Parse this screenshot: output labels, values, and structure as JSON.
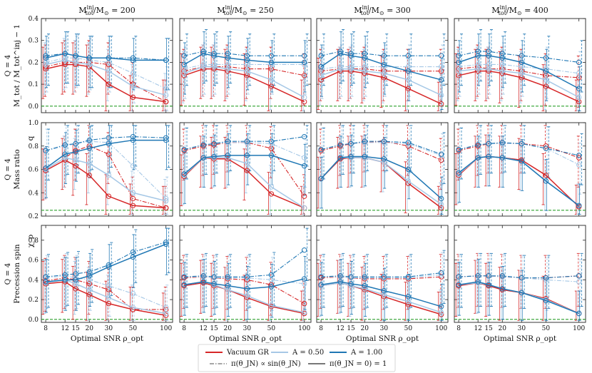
{
  "chart_data": {
    "type": "line",
    "x_ticks": [
      8,
      12,
      15,
      20,
      30,
      50,
      100
    ],
    "x_scale": "log",
    "xlim": [
      7.3,
      115
    ],
    "xlabel": "Optimal SNR ρ_opt",
    "column_titles": [
      "M_tot^inj/M_⊙ = 200",
      "M_tot^inj/M_⊙ = 250",
      "M_tot^inj/M_⊙ = 300",
      "M_tot^inj/M_⊙ = 400"
    ],
    "colors": {
      "vacuum": "#d62728",
      "a050": "#a6c8e6",
      "a100": "#1f77b4",
      "truth": "#2ca02c"
    },
    "legend": {
      "series": [
        "Vacuum GR",
        "A = 0.50",
        "A = 1.00"
      ],
      "priors": [
        "π(θ_JN) ∝ sin(θ_JN)",
        "π(θ_JN = 0) = 1"
      ]
    },
    "rows": [
      {
        "name": "mass",
        "ylabel_top": "Q = 4",
        "ylabel_bottom": "M_tot / M_tot^inj − 1",
        "ylim": [
          -0.03,
          0.4
        ],
        "yticks": [
          0.0,
          0.1,
          0.2,
          0.3,
          0.4
        ],
        "truth": 0.0,
        "panels": [
          {
            "vac_s": [
              0.17,
              0.19,
              0.19,
              0.18,
              0.1,
              0.04,
              0.02
            ],
            "vac_d": [
              0.18,
              0.2,
              0.2,
              0.2,
              0.19,
              0.1,
              0.02
            ],
            "a05_s": [
              0.19,
              0.21,
              0.2,
              0.19,
              0.16,
              0.09,
              0.05
            ],
            "a05_d": [
              0.2,
              0.22,
              0.22,
              0.21,
              0.2,
              0.15,
              0.08
            ],
            "a10_s": [
              0.22,
              0.24,
              0.23,
              0.22,
              0.22,
              0.21,
              0.21
            ],
            "a10_d": [
              0.23,
              0.24,
              0.23,
              0.22,
              0.22,
              0.22,
              0.21
            ]
          },
          {
            "vac_s": [
              0.14,
              0.17,
              0.17,
              0.16,
              0.14,
              0.09,
              0.02
            ],
            "vac_d": [
              0.16,
              0.18,
              0.18,
              0.18,
              0.17,
              0.17,
              0.14
            ],
            "a05_s": [
              0.15,
              0.18,
              0.18,
              0.17,
              0.16,
              0.12,
              0.04
            ],
            "a05_d": [
              0.17,
              0.19,
              0.19,
              0.19,
              0.19,
              0.19,
              0.19
            ],
            "a10_s": [
              0.19,
              0.24,
              0.23,
              0.22,
              0.21,
              0.2,
              0.2
            ],
            "a10_d": [
              0.23,
              0.25,
              0.24,
              0.24,
              0.23,
              0.23,
              0.23
            ]
          },
          {
            "vac_s": [
              0.12,
              0.16,
              0.16,
              0.15,
              0.13,
              0.08,
              0.01
            ],
            "vac_d": [
              0.16,
              0.17,
              0.17,
              0.17,
              0.16,
              0.16,
              0.16
            ],
            "a05_s": [
              0.14,
              0.17,
              0.17,
              0.16,
              0.15,
              0.12,
              0.05
            ],
            "a05_d": [
              0.17,
              0.18,
              0.18,
              0.18,
              0.18,
              0.18,
              0.18
            ],
            "a10_s": [
              0.18,
              0.24,
              0.23,
              0.22,
              0.19,
              0.16,
              0.12
            ],
            "a10_d": [
              0.23,
              0.25,
              0.24,
              0.24,
              0.23,
              0.23,
              0.23
            ]
          },
          {
            "vac_s": [
              0.14,
              0.16,
              0.16,
              0.15,
              0.13,
              0.09,
              0.02
            ],
            "vac_d": [
              0.17,
              0.18,
              0.17,
              0.17,
              0.16,
              0.14,
              0.13
            ],
            "a05_s": [
              0.16,
              0.17,
              0.17,
              0.16,
              0.15,
              0.12,
              0.04
            ],
            "a05_d": [
              0.18,
              0.19,
              0.19,
              0.19,
              0.18,
              0.17,
              0.15
            ],
            "a10_s": [
              0.2,
              0.23,
              0.23,
              0.22,
              0.2,
              0.16,
              0.08
            ],
            "a10_d": [
              0.23,
              0.25,
              0.25,
              0.24,
              0.23,
              0.22,
              0.2
            ]
          }
        ]
      },
      {
        "name": "massratio",
        "ylabel_top": "Q = 4",
        "ylabel_bottom": "Mass ratio",
        "ylabel_side": "q",
        "ylim": [
          0.2,
          1.0
        ],
        "yticks": [
          0.2,
          0.4,
          0.6,
          0.8,
          1.0
        ],
        "truth": 0.25,
        "panels": [
          {
            "vac_s": [
              0.59,
              0.68,
              0.63,
              0.55,
              0.37,
              0.29,
              0.27
            ],
            "vac_d": [
              0.6,
              0.7,
              0.76,
              0.8,
              0.73,
              0.35,
              0.27
            ],
            "a05_s": [
              0.6,
              0.7,
              0.68,
              0.65,
              0.55,
              0.4,
              0.33
            ],
            "a05_d": [
              0.76,
              0.8,
              0.82,
              0.84,
              0.83,
              0.63,
              0.35
            ],
            "a10_s": [
              0.61,
              0.73,
              0.75,
              0.78,
              0.82,
              0.85,
              0.85
            ],
            "a10_d": [
              0.76,
              0.81,
              0.82,
              0.85,
              0.87,
              0.88,
              0.87
            ]
          },
          {
            "vac_s": [
              0.54,
              0.7,
              0.69,
              0.69,
              0.59,
              0.39,
              0.27
            ],
            "vac_d": [
              0.76,
              0.8,
              0.81,
              0.83,
              0.83,
              0.78,
              0.37
            ],
            "a05_s": [
              0.55,
              0.7,
              0.7,
              0.7,
              0.65,
              0.45,
              0.27
            ],
            "a05_d": [
              0.77,
              0.81,
              0.82,
              0.83,
              0.83,
              0.82,
              0.7
            ],
            "a10_s": [
              0.56,
              0.7,
              0.71,
              0.72,
              0.72,
              0.72,
              0.63
            ],
            "a10_d": [
              0.77,
              0.81,
              0.82,
              0.84,
              0.84,
              0.84,
              0.88
            ]
          },
          {
            "vac_s": [
              0.52,
              0.69,
              0.7,
              0.7,
              0.66,
              0.48,
              0.27
            ],
            "vac_d": [
              0.76,
              0.8,
              0.82,
              0.83,
              0.84,
              0.8,
              0.68
            ],
            "a05_s": [
              0.52,
              0.7,
              0.7,
              0.7,
              0.66,
              0.5,
              0.3
            ],
            "a05_d": [
              0.77,
              0.81,
              0.82,
              0.83,
              0.83,
              0.82,
              0.72
            ],
            "a10_s": [
              0.52,
              0.7,
              0.71,
              0.71,
              0.69,
              0.6,
              0.35
            ],
            "a10_d": [
              0.77,
              0.81,
              0.82,
              0.84,
              0.84,
              0.83,
              0.73
            ]
          },
          {
            "vac_s": [
              0.55,
              0.7,
              0.71,
              0.7,
              0.68,
              0.55,
              0.28
            ],
            "vac_d": [
              0.76,
              0.8,
              0.82,
              0.82,
              0.82,
              0.8,
              0.7
            ],
            "a05_s": [
              0.56,
              0.7,
              0.71,
              0.7,
              0.67,
              0.5,
              0.29
            ],
            "a05_d": [
              0.77,
              0.81,
              0.82,
              0.82,
              0.82,
              0.78,
              0.64
            ],
            "a10_s": [
              0.57,
              0.7,
              0.71,
              0.7,
              0.67,
              0.5,
              0.29
            ],
            "a10_d": [
              0.77,
              0.81,
              0.82,
              0.83,
              0.82,
              0.78,
              0.72
            ]
          }
        ]
      },
      {
        "name": "precession",
        "ylabel_top": "Q = 4",
        "ylabel_bottom": "Precession spin",
        "ylabel_side": "χ_p",
        "ylim": [
          -0.03,
          0.95
        ],
        "yticks": [
          0.0,
          0.2,
          0.4,
          0.6,
          0.8
        ],
        "truth": 0.0,
        "panels": [
          {
            "vac_s": [
              0.36,
              0.38,
              0.31,
              0.25,
              0.16,
              0.1,
              0.04
            ],
            "vac_d": [
              0.39,
              0.42,
              0.4,
              0.36,
              0.3,
              0.1,
              0.1
            ],
            "a05_s": [
              0.37,
              0.4,
              0.36,
              0.3,
              0.22,
              0.12,
              0.06
            ],
            "a05_d": [
              0.42,
              0.44,
              0.42,
              0.4,
              0.34,
              0.26,
              0.12
            ],
            "a10_s": [
              0.38,
              0.4,
              0.4,
              0.44,
              0.53,
              0.63,
              0.76
            ],
            "a10_d": [
              0.43,
              0.45,
              0.46,
              0.48,
              0.55,
              0.68,
              0.78
            ]
          },
          {
            "vac_s": [
              0.34,
              0.37,
              0.34,
              0.3,
              0.22,
              0.13,
              0.06
            ],
            "vac_d": [
              0.42,
              0.43,
              0.42,
              0.41,
              0.4,
              0.35,
              0.16
            ],
            "a05_s": [
              0.35,
              0.38,
              0.35,
              0.3,
              0.24,
              0.14,
              0.07
            ],
            "a05_d": [
              0.43,
              0.43,
              0.42,
              0.42,
              0.42,
              0.4,
              0.36
            ],
            "a10_s": [
              0.35,
              0.38,
              0.36,
              0.34,
              0.31,
              0.33,
              0.41
            ],
            "a10_d": [
              0.43,
              0.44,
              0.43,
              0.43,
              0.43,
              0.45,
              0.7
            ]
          },
          {
            "vac_s": [
              0.34,
              0.37,
              0.34,
              0.3,
              0.23,
              0.15,
              0.05
            ],
            "vac_d": [
              0.42,
              0.43,
              0.42,
              0.41,
              0.41,
              0.41,
              0.43
            ],
            "a05_s": [
              0.34,
              0.37,
              0.34,
              0.31,
              0.25,
              0.18,
              0.07
            ],
            "a05_d": [
              0.43,
              0.43,
              0.42,
              0.42,
              0.42,
              0.42,
              0.45
            ],
            "a10_s": [
              0.35,
              0.38,
              0.36,
              0.34,
              0.29,
              0.23,
              0.13
            ],
            "a10_d": [
              0.43,
              0.44,
              0.43,
              0.43,
              0.43,
              0.43,
              0.47
            ]
          },
          {
            "vac_s": [
              0.34,
              0.37,
              0.34,
              0.3,
              0.27,
              0.21,
              0.06
            ],
            "vac_d": [
              0.43,
              0.44,
              0.44,
              0.43,
              0.42,
              0.42,
              0.44
            ],
            "a05_s": [
              0.35,
              0.37,
              0.35,
              0.31,
              0.27,
              0.2,
              0.06
            ],
            "a05_d": [
              0.43,
              0.44,
              0.44,
              0.43,
              0.42,
              0.4,
              0.38
            ],
            "a10_s": [
              0.35,
              0.38,
              0.35,
              0.31,
              0.27,
              0.19,
              0.06
            ],
            "a10_d": [
              0.43,
              0.44,
              0.44,
              0.44,
              0.42,
              0.42,
              0.44
            ]
          }
        ]
      }
    ]
  }
}
